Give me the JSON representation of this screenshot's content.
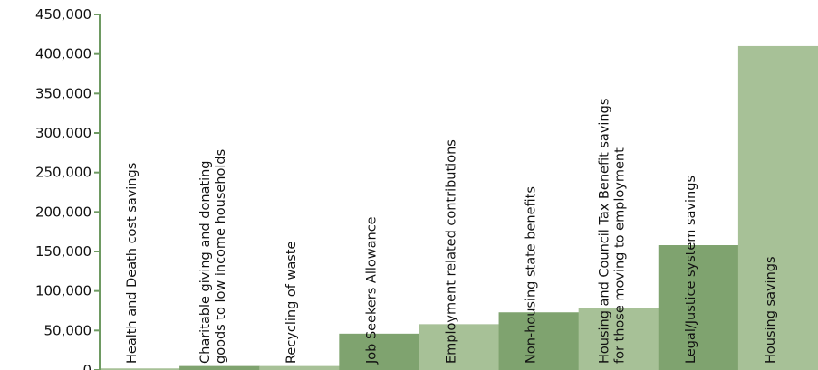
{
  "chart_data": {
    "type": "bar",
    "title": "",
    "xlabel": "",
    "ylabel": "",
    "ylim": [
      0,
      450000
    ],
    "yticks": [
      0,
      50000,
      100000,
      150000,
      200000,
      250000,
      300000,
      350000,
      400000,
      450000
    ],
    "ytick_labels": [
      "0",
      "50,000",
      "100,000",
      "150,000",
      "200,000",
      "250,000",
      "300,000",
      "350,000",
      "400,000",
      "450,000"
    ],
    "grid": false,
    "legend": "none",
    "categories": [
      [
        "Health and Death cost savings"
      ],
      [
        "Charitable giving and donating",
        "goods to low income households"
      ],
      [
        "Recycling of waste"
      ],
      [
        "Job Seekers Allowance"
      ],
      [
        "Employment related contributions"
      ],
      [
        "Non-housing state benefits"
      ],
      [
        "Housing and Council Tax Benefit savings",
        "for those moving to employment"
      ],
      [
        "Legal/Justice system savings"
      ],
      [
        "Housing savings"
      ]
    ],
    "values": [
      2000,
      5000,
      5000,
      46000,
      58000,
      73000,
      78000,
      158000,
      410000
    ],
    "colors": {
      "dark": "#7fa36f",
      "light": "#a7c197",
      "axis": "#6e9a62"
    },
    "bar_colors": [
      "light",
      "dark",
      "light",
      "dark",
      "light",
      "dark",
      "light",
      "dark",
      "light"
    ]
  }
}
